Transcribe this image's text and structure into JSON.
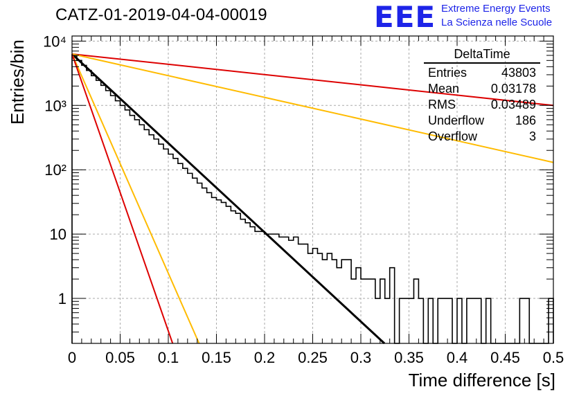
{
  "header": {
    "title": "CATZ-01-2019-04-04-00019",
    "logo_mark": "EEE",
    "logo_line1": "Extreme Energy Events",
    "logo_line2": "La Scienza nelle Scuole"
  },
  "stats_box": {
    "title": "DeltaTime",
    "rows": [
      {
        "label": "Entries",
        "value": "43803"
      },
      {
        "label": "Mean",
        "value": "0.03178"
      },
      {
        "label": "RMS",
        "value": "0.03489"
      },
      {
        "label": "Underflow",
        "value": "186"
      },
      {
        "label": "Overflow",
        "value": "3"
      }
    ]
  },
  "chart_data": {
    "type": "line",
    "title": "CATZ-01-2019-04-04-00019",
    "xlabel": "Time difference [s]",
    "ylabel": "Entries/bin",
    "xlim": [
      0,
      0.5
    ],
    "ylim": [
      0.2,
      12000
    ],
    "yscale": "log",
    "grid": true,
    "x_ticks": [
      "0",
      "0.05",
      "0.1",
      "0.15",
      "0.2",
      "0.25",
      "0.3",
      "0.35",
      "0.4",
      "0.45",
      "0.5"
    ],
    "y_ticks": [
      {
        "value": 1,
        "label": "1"
      },
      {
        "value": 10,
        "label": "10"
      },
      {
        "value": 100,
        "label": "10²"
      },
      {
        "value": 1000,
        "label": "10³"
      },
      {
        "value": 10000,
        "label": "10⁴"
      }
    ],
    "histogram": {
      "bin_width": 0.005,
      "color": "#000000",
      "counts": [
        6000,
        5000,
        4200,
        3500,
        2900,
        2450,
        2050,
        1700,
        1420,
        1180,
        1000,
        850,
        700,
        600,
        500,
        420,
        350,
        300,
        250,
        210,
        175,
        150,
        125,
        105,
        88,
        74,
        62,
        52,
        44,
        37,
        34,
        31,
        27,
        23,
        21,
        17,
        15,
        13,
        11,
        11,
        10,
        10,
        10,
        9,
        9,
        8,
        9,
        7,
        7,
        5,
        6,
        5,
        4,
        5,
        4,
        3,
        4,
        4,
        2,
        3,
        2,
        2,
        2,
        1,
        2,
        1,
        3,
        0,
        1,
        1,
        1,
        2,
        1,
        0,
        1,
        0,
        1,
        1,
        1,
        0,
        1,
        0,
        1,
        1,
        1,
        0,
        1,
        0,
        0,
        0,
        0,
        0,
        0,
        1,
        1,
        0,
        0,
        0,
        0,
        1
      ]
    },
    "series": [
      {
        "color": "#000000",
        "values": [
          [
            0,
            6300
          ],
          [
            0.3245,
            0.2
          ]
        ]
      },
      {
        "color": "#dd0000",
        "values": [
          [
            0,
            6300
          ],
          [
            0.5,
            1000
          ]
        ]
      },
      {
        "color": "#ffbb00",
        "values": [
          [
            0,
            6300
          ],
          [
            0.5,
            130
          ]
        ]
      },
      {
        "color": "#ffbb00",
        "values": [
          [
            0,
            6300
          ],
          [
            0.132,
            0.2
          ]
        ]
      },
      {
        "color": "#dd0000",
        "values": [
          [
            0,
            6300
          ],
          [
            0.1045,
            0.2
          ]
        ]
      }
    ]
  }
}
